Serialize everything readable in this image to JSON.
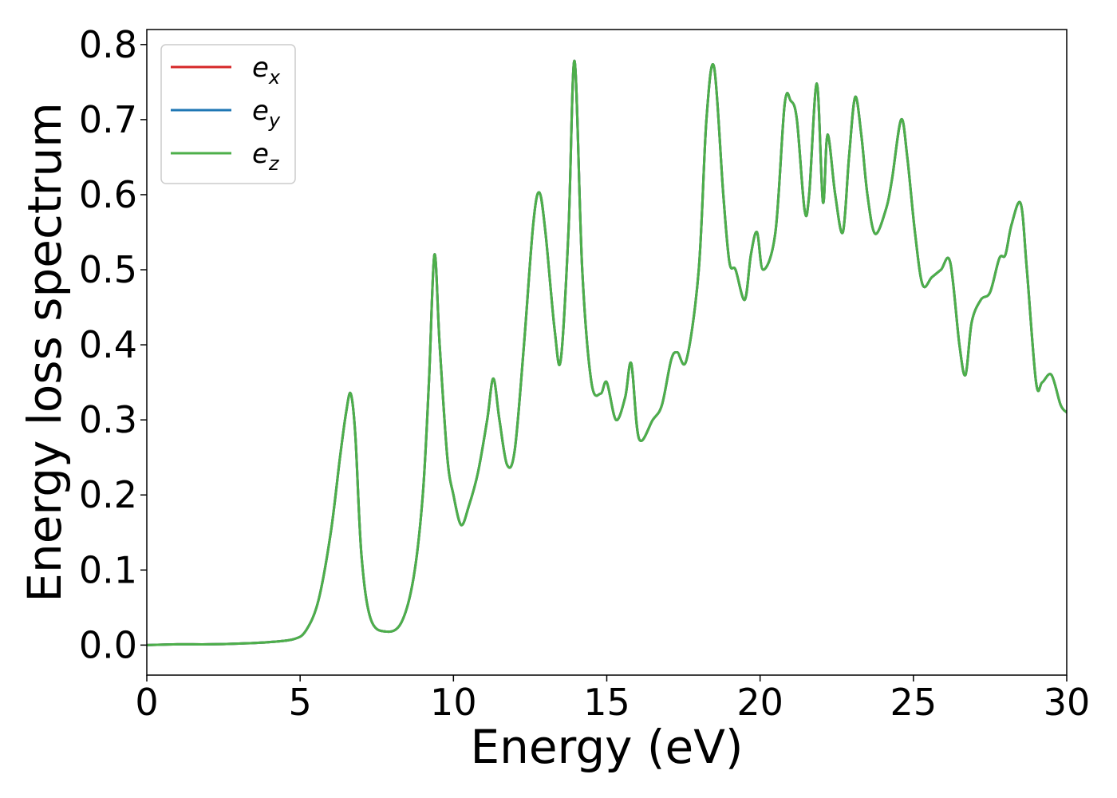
{
  "chart_data": {
    "type": "line",
    "title": "",
    "xlabel": "Energy (eV)",
    "ylabel": "Energy loss spectrum",
    "xlim": [
      0,
      30
    ],
    "ylim": [
      -0.04,
      0.82
    ],
    "xticks": [
      0,
      5,
      10,
      15,
      20,
      25,
      30
    ],
    "xtick_labels": [
      "0",
      "5",
      "10",
      "15",
      "20",
      "25",
      "30"
    ],
    "yticks": [
      0.0,
      0.1,
      0.2,
      0.3,
      0.4,
      0.5,
      0.6,
      0.7,
      0.8
    ],
    "ytick_labels": [
      "0.0",
      "0.1",
      "0.2",
      "0.3",
      "0.4",
      "0.5",
      "0.6",
      "0.7",
      "0.8"
    ],
    "grid": false,
    "legend_position": "top-left",
    "series": [
      {
        "name": "e_x",
        "label_base": "e",
        "label_sub": "x",
        "color": "#d62728",
        "x": [
          0,
          1,
          2,
          3,
          4,
          4.8,
          5.2,
          5.6,
          6.0,
          6.3,
          6.5,
          6.65,
          6.8,
          7.0,
          7.3,
          7.8,
          8.3,
          8.7,
          9.0,
          9.2,
          9.38,
          9.55,
          9.8,
          10.0,
          10.25,
          10.5,
          10.8,
          11.1,
          11.3,
          11.5,
          11.75,
          12.0,
          12.3,
          12.6,
          12.8,
          13.0,
          13.3,
          13.5,
          13.75,
          13.95,
          14.2,
          14.5,
          14.8,
          15.0,
          15.3,
          15.6,
          15.8,
          16.05,
          16.5,
          16.8,
          17.1,
          17.3,
          17.6,
          18.0,
          18.25,
          18.5,
          18.8,
          19.0,
          19.2,
          19.5,
          19.7,
          19.9,
          20.1,
          20.5,
          20.8,
          21.0,
          21.2,
          21.45,
          21.6,
          21.85,
          22.05,
          22.2,
          22.45,
          22.7,
          22.9,
          23.1,
          23.3,
          23.5,
          23.75,
          24.1,
          24.3,
          24.6,
          24.8,
          25.05,
          25.3,
          25.6,
          25.9,
          26.2,
          26.5,
          26.7,
          26.9,
          27.2,
          27.5,
          27.8,
          28.0,
          28.2,
          28.5,
          28.7,
          29.0,
          29.2,
          29.5,
          29.8,
          30.0
        ],
        "y": [
          0.0,
          0.001,
          0.001,
          0.002,
          0.004,
          0.008,
          0.02,
          0.06,
          0.15,
          0.25,
          0.31,
          0.335,
          0.28,
          0.12,
          0.035,
          0.018,
          0.03,
          0.09,
          0.2,
          0.35,
          0.52,
          0.4,
          0.25,
          0.2,
          0.16,
          0.185,
          0.23,
          0.3,
          0.355,
          0.3,
          0.24,
          0.26,
          0.4,
          0.56,
          0.603,
          0.55,
          0.42,
          0.38,
          0.55,
          0.778,
          0.5,
          0.35,
          0.335,
          0.35,
          0.3,
          0.33,
          0.375,
          0.275,
          0.3,
          0.32,
          0.38,
          0.39,
          0.38,
          0.5,
          0.7,
          0.77,
          0.6,
          0.51,
          0.5,
          0.46,
          0.52,
          0.55,
          0.5,
          0.55,
          0.72,
          0.725,
          0.7,
          0.58,
          0.6,
          0.748,
          0.59,
          0.68,
          0.6,
          0.55,
          0.65,
          0.73,
          0.68,
          0.6,
          0.548,
          0.58,
          0.62,
          0.7,
          0.65,
          0.55,
          0.48,
          0.49,
          0.5,
          0.51,
          0.4,
          0.36,
          0.43,
          0.46,
          0.47,
          0.515,
          0.52,
          0.56,
          0.588,
          0.5,
          0.35,
          0.35,
          0.36,
          0.32,
          0.31
        ]
      },
      {
        "name": "e_y",
        "label_base": "e",
        "label_sub": "y",
        "color": "#1f77b4",
        "x": [
          0,
          1,
          2,
          3,
          4,
          4.8,
          5.2,
          5.6,
          6.0,
          6.3,
          6.5,
          6.65,
          6.8,
          7.0,
          7.3,
          7.8,
          8.3,
          8.7,
          9.0,
          9.2,
          9.38,
          9.55,
          9.8,
          10.0,
          10.25,
          10.5,
          10.8,
          11.1,
          11.3,
          11.5,
          11.75,
          12.0,
          12.3,
          12.6,
          12.8,
          13.0,
          13.3,
          13.5,
          13.75,
          13.95,
          14.2,
          14.5,
          14.8,
          15.0,
          15.3,
          15.6,
          15.8,
          16.05,
          16.5,
          16.8,
          17.1,
          17.3,
          17.6,
          18.0,
          18.25,
          18.5,
          18.8,
          19.0,
          19.2,
          19.5,
          19.7,
          19.9,
          20.1,
          20.5,
          20.8,
          21.0,
          21.2,
          21.45,
          21.6,
          21.85,
          22.05,
          22.2,
          22.45,
          22.7,
          22.9,
          23.1,
          23.3,
          23.5,
          23.75,
          24.1,
          24.3,
          24.6,
          24.8,
          25.05,
          25.3,
          25.6,
          25.9,
          26.2,
          26.5,
          26.7,
          26.9,
          27.2,
          27.5,
          27.8,
          28.0,
          28.2,
          28.5,
          28.7,
          29.0,
          29.2,
          29.5,
          29.8,
          30.0
        ],
        "y": [
          0.0,
          0.001,
          0.001,
          0.002,
          0.004,
          0.008,
          0.02,
          0.06,
          0.15,
          0.25,
          0.31,
          0.335,
          0.28,
          0.12,
          0.035,
          0.018,
          0.03,
          0.09,
          0.2,
          0.35,
          0.52,
          0.4,
          0.25,
          0.2,
          0.16,
          0.185,
          0.23,
          0.3,
          0.355,
          0.3,
          0.24,
          0.26,
          0.4,
          0.56,
          0.603,
          0.55,
          0.42,
          0.38,
          0.55,
          0.778,
          0.5,
          0.35,
          0.335,
          0.35,
          0.3,
          0.33,
          0.375,
          0.275,
          0.3,
          0.32,
          0.38,
          0.39,
          0.38,
          0.5,
          0.7,
          0.77,
          0.6,
          0.51,
          0.5,
          0.46,
          0.52,
          0.55,
          0.5,
          0.55,
          0.72,
          0.725,
          0.7,
          0.58,
          0.6,
          0.748,
          0.59,
          0.68,
          0.6,
          0.55,
          0.65,
          0.73,
          0.68,
          0.6,
          0.548,
          0.58,
          0.62,
          0.7,
          0.65,
          0.55,
          0.48,
          0.49,
          0.5,
          0.51,
          0.4,
          0.36,
          0.43,
          0.46,
          0.47,
          0.515,
          0.52,
          0.56,
          0.588,
          0.5,
          0.35,
          0.35,
          0.36,
          0.32,
          0.31
        ]
      },
      {
        "name": "e_z",
        "label_base": "e",
        "label_sub": "z",
        "color": "#4daf4a",
        "x": [
          0,
          1,
          2,
          3,
          4,
          4.8,
          5.2,
          5.6,
          6.0,
          6.3,
          6.5,
          6.65,
          6.8,
          7.0,
          7.3,
          7.8,
          8.3,
          8.7,
          9.0,
          9.2,
          9.38,
          9.55,
          9.8,
          10.0,
          10.25,
          10.5,
          10.8,
          11.1,
          11.3,
          11.5,
          11.75,
          12.0,
          12.3,
          12.6,
          12.8,
          13.0,
          13.3,
          13.5,
          13.75,
          13.95,
          14.2,
          14.5,
          14.8,
          15.0,
          15.3,
          15.6,
          15.8,
          16.05,
          16.5,
          16.8,
          17.1,
          17.3,
          17.6,
          18.0,
          18.25,
          18.5,
          18.8,
          19.0,
          19.2,
          19.5,
          19.7,
          19.9,
          20.1,
          20.5,
          20.8,
          21.0,
          21.2,
          21.45,
          21.6,
          21.85,
          22.05,
          22.2,
          22.45,
          22.7,
          22.9,
          23.1,
          23.3,
          23.5,
          23.75,
          24.1,
          24.3,
          24.6,
          24.8,
          25.05,
          25.3,
          25.6,
          25.9,
          26.2,
          26.5,
          26.7,
          26.9,
          27.2,
          27.5,
          27.8,
          28.0,
          28.2,
          28.5,
          28.7,
          29.0,
          29.2,
          29.5,
          29.8,
          30.0
        ],
        "y": [
          0.0,
          0.001,
          0.001,
          0.002,
          0.004,
          0.008,
          0.02,
          0.06,
          0.15,
          0.25,
          0.31,
          0.335,
          0.28,
          0.12,
          0.035,
          0.018,
          0.03,
          0.09,
          0.2,
          0.35,
          0.52,
          0.4,
          0.25,
          0.2,
          0.16,
          0.185,
          0.23,
          0.3,
          0.355,
          0.3,
          0.24,
          0.26,
          0.4,
          0.56,
          0.603,
          0.55,
          0.42,
          0.38,
          0.55,
          0.778,
          0.5,
          0.35,
          0.335,
          0.35,
          0.3,
          0.33,
          0.375,
          0.275,
          0.3,
          0.32,
          0.38,
          0.39,
          0.38,
          0.5,
          0.7,
          0.77,
          0.6,
          0.51,
          0.5,
          0.46,
          0.52,
          0.55,
          0.5,
          0.55,
          0.72,
          0.725,
          0.7,
          0.58,
          0.6,
          0.748,
          0.59,
          0.68,
          0.6,
          0.55,
          0.65,
          0.73,
          0.68,
          0.6,
          0.548,
          0.58,
          0.62,
          0.7,
          0.65,
          0.55,
          0.48,
          0.49,
          0.5,
          0.51,
          0.4,
          0.36,
          0.43,
          0.46,
          0.47,
          0.515,
          0.52,
          0.56,
          0.588,
          0.5,
          0.35,
          0.35,
          0.36,
          0.32,
          0.31
        ]
      }
    ]
  }
}
